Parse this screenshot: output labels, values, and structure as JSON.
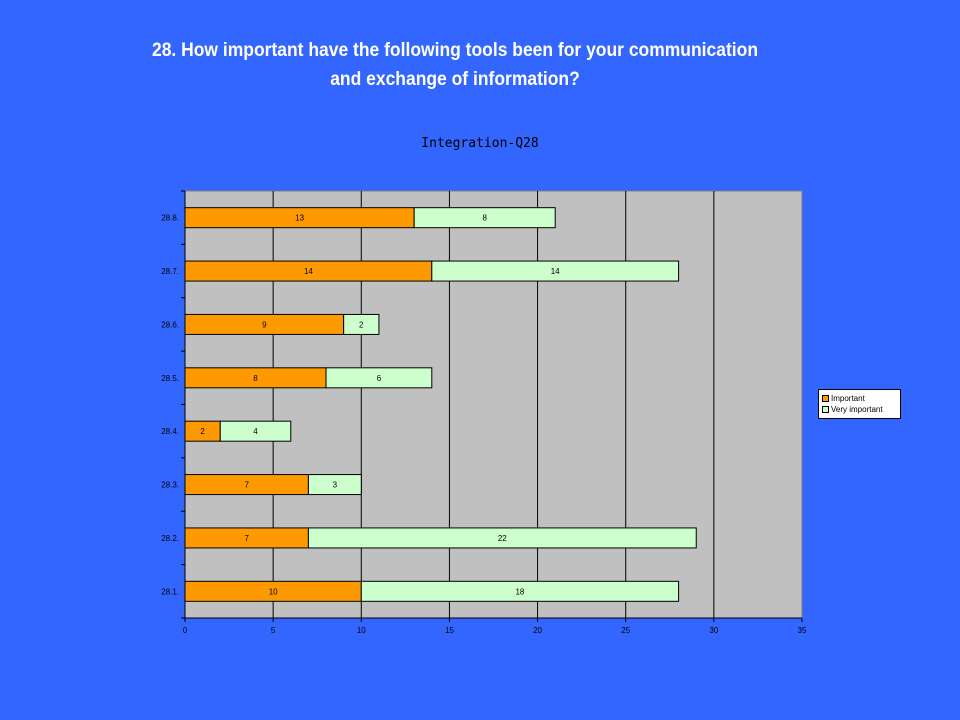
{
  "slide": {
    "title_line1": "28. How important have the following tools been for your communication",
    "title_line2": "and exchange of information?"
  },
  "chart_data": {
    "type": "bar",
    "orientation": "horizontal",
    "stacked": true,
    "title": "Integration-Q28",
    "categories": [
      "28.1.",
      "28.2.",
      "28.3.",
      "28.4.",
      "28.5.",
      "28.6.",
      "28.7.",
      "28.8."
    ],
    "series": [
      {
        "name": "Important",
        "values": [
          10,
          7,
          7,
          2,
          8,
          9,
          14,
          13
        ],
        "color": "#ff9900"
      },
      {
        "name": "Very important",
        "values": [
          18,
          22,
          3,
          4,
          6,
          2,
          14,
          8
        ],
        "color": "#ccffcc"
      }
    ],
    "xlim": [
      0,
      35
    ],
    "x_ticks": [
      0,
      5,
      10,
      15,
      20,
      25,
      30,
      35
    ],
    "grid": "vertical",
    "plot_background": "#c0c0c0",
    "data_labels": true,
    "legend": "right"
  }
}
